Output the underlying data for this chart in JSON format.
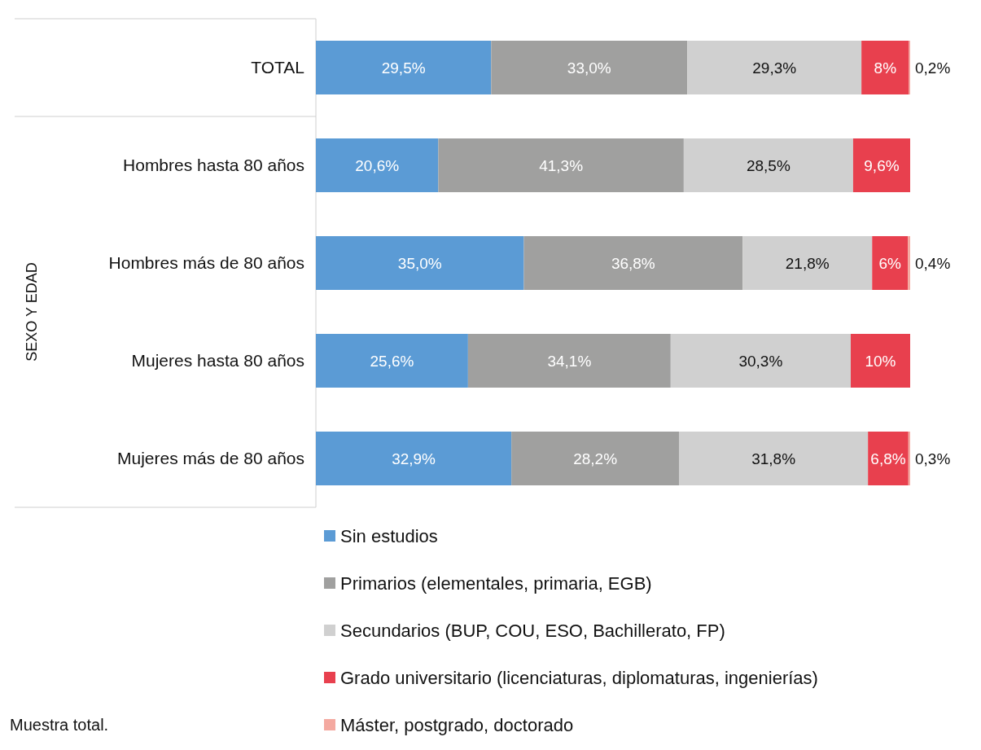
{
  "chart_data": {
    "type": "bar",
    "orientation": "horizontal",
    "stacked": true,
    "ylabel": "SEXO Y EDAD",
    "categories": [
      "TOTAL",
      "Hombres hasta 80 años",
      "Hombres más de 80 años",
      "Mujeres hasta 80 años",
      "Mujeres más de 80 años"
    ],
    "series": [
      {
        "name": "Sin estudios",
        "color": "#5b9bd5",
        "values": [
          29.5,
          20.6,
          35.0,
          25.6,
          32.9
        ],
        "value_labels": [
          "29,5%",
          "20,6%",
          "35,0%",
          "25,6%",
          "32,9%"
        ]
      },
      {
        "name": "Primarios (elementales, primaria, EGB)",
        "color": "#a0a09f",
        "values": [
          33.0,
          41.3,
          36.8,
          34.1,
          28.2
        ],
        "value_labels": [
          "33,0%",
          "41,3%",
          "36,8%",
          "34,1%",
          "28,2%"
        ]
      },
      {
        "name": "Secundarios (BUP, COU, ESO, Bachillerato, FP)",
        "color": "#d0d0d0",
        "values": [
          29.3,
          28.5,
          21.8,
          30.3,
          31.8
        ],
        "value_labels": [
          "29,3%",
          "28,5%",
          "21,8%",
          "30,3%",
          "31,8%"
        ]
      },
      {
        "name": "Grado universitario (licenciaturas, diplomaturas, ingenierías)",
        "color": "#e8404e",
        "values": [
          8,
          9.6,
          6,
          10,
          6.8
        ],
        "value_labels": [
          "8%",
          "9,6%",
          "6%",
          "10%",
          "6,8%"
        ]
      },
      {
        "name": "Máster, postgrado, doctorado",
        "color": "#f4a9a0",
        "values": [
          0.2,
          null,
          0.4,
          null,
          0.3
        ],
        "value_labels": [
          "0,2%",
          null,
          "0,4%",
          null,
          "0,3%"
        ]
      }
    ],
    "legend": "bottom",
    "annotations": [
      "Muestra total."
    ]
  }
}
